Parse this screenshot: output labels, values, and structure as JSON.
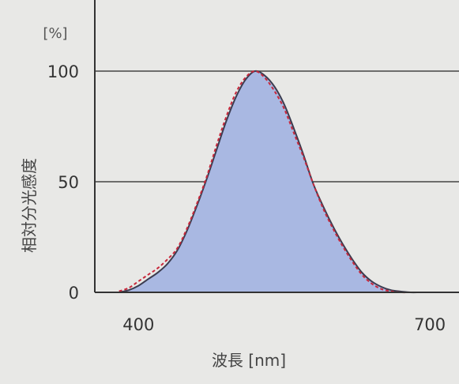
{
  "chart_data": {
    "type": "area",
    "title": "",
    "xlabel": "波長 [nm]",
    "ylabel": "相対分光感度",
    "y_unit": "[%]",
    "xlim": [
      355,
      730
    ],
    "ylim": [
      0,
      130
    ],
    "x_ticks": [
      {
        "value": 400,
        "label": "400"
      },
      {
        "value": 700,
        "label": "700"
      }
    ],
    "y_ticks": [
      {
        "value": 0,
        "label": "0"
      },
      {
        "value": 50,
        "label": "50"
      },
      {
        "value": 100,
        "label": "100"
      }
    ],
    "grid": "horizontal at 50 and 100",
    "colors": {
      "fill": "#a9b8e2",
      "curve": "#3c3c50",
      "dashed_curve": "#c8283c",
      "grid": "#444444"
    },
    "series": [
      {
        "style": "solid-filled",
        "x": [
          380,
          390,
          400,
          410,
          420,
          430,
          440,
          450,
          460,
          470,
          480,
          490,
          500,
          510,
          520,
          530,
          540,
          550,
          560,
          570,
          580,
          590,
          600,
          610,
          620,
          630,
          640,
          650,
          660,
          670,
          680,
          690,
          700,
          710,
          720
        ],
        "y": [
          0,
          1,
          3,
          6,
          9,
          13,
          19,
          28,
          39,
          51,
          64,
          77,
          88,
          96,
          100,
          98,
          93,
          85,
          74,
          62,
          49,
          39,
          30,
          22,
          15,
          9,
          5,
          2.5,
          1,
          0.4,
          0,
          0,
          0,
          0,
          0
        ]
      },
      {
        "style": "dashed",
        "x": [
          380,
          390,
          400,
          410,
          420,
          430,
          440,
          450,
          460,
          470,
          480,
          490,
          500,
          510,
          520,
          530,
          540,
          550,
          560,
          570,
          580,
          590,
          600,
          610,
          620,
          630,
          640,
          650,
          660,
          670,
          680,
          690,
          700,
          710,
          720
        ],
        "y": [
          0.5,
          2,
          5,
          8,
          11,
          15,
          20,
          29,
          40,
          52,
          66,
          79,
          90,
          97,
          100,
          97,
          91,
          83,
          72,
          61,
          49,
          38,
          29,
          21,
          14,
          8,
          4,
          1.5,
          0.5,
          0,
          0,
          0,
          0,
          0,
          0
        ]
      }
    ]
  }
}
